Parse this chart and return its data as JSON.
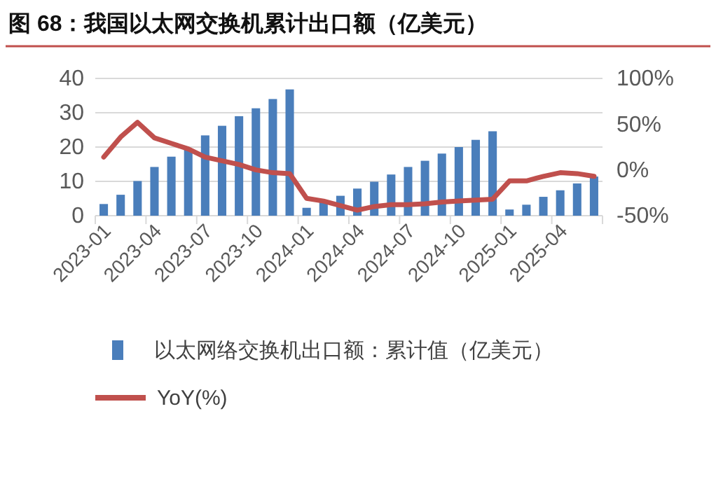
{
  "chart_data": {
    "type": "bar",
    "title": "图 68：我国以太网交换机累计出口额（亿美元）",
    "categories": [
      "2023-01",
      null,
      null,
      "2023-04",
      null,
      null,
      "2023-07",
      null,
      null,
      "2023-10",
      null,
      null,
      "2024-01",
      null,
      null,
      "2024-04",
      null,
      null,
      "2024-07",
      null,
      null,
      "2024-10",
      null,
      null,
      "2025-01",
      null,
      null,
      "2025-04",
      null,
      null
    ],
    "series": [
      {
        "name": "以太网络交换机出口额：累计值（亿美元）",
        "color": "#4a7ebb",
        "values": [
          3.4,
          6.1,
          10.1,
          14.2,
          17.2,
          19.3,
          23.4,
          26.2,
          29,
          31.3,
          34,
          36.8,
          2.3,
          4,
          5.8,
          7.9,
          9.9,
          12,
          14.2,
          16,
          18.1,
          20,
          22.1,
          24.6,
          1.8,
          3.2,
          5.5,
          7.4,
          9.4,
          11.4
        ]
      },
      {
        "name": "YoY(%)",
        "type": "line",
        "axis": "y2",
        "color": "#c0504d",
        "values": [
          14,
          36,
          52,
          35,
          29,
          23,
          14,
          10,
          6,
          0,
          -3,
          -4,
          -31,
          -34,
          -39,
          -44,
          -40,
          -38,
          -38,
          -37,
          -35,
          -34,
          -33,
          -32,
          -12,
          -12,
          -7,
          -3,
          -4,
          -7
        ]
      }
    ],
    "ylim": [
      0,
      40
    ],
    "yticks": [
      0,
      10,
      20,
      30,
      40
    ],
    "y2lim": [
      -50,
      100
    ],
    "y2ticks": [
      {
        "value": -50,
        "label": "-50%"
      },
      {
        "value": 0,
        "label": "0%"
      },
      {
        "value": 50,
        "label": "50%"
      },
      {
        "value": 100,
        "label": "100%"
      }
    ],
    "grid": "y",
    "legend": "bottom",
    "line_style": "solid",
    "marker": "none"
  }
}
